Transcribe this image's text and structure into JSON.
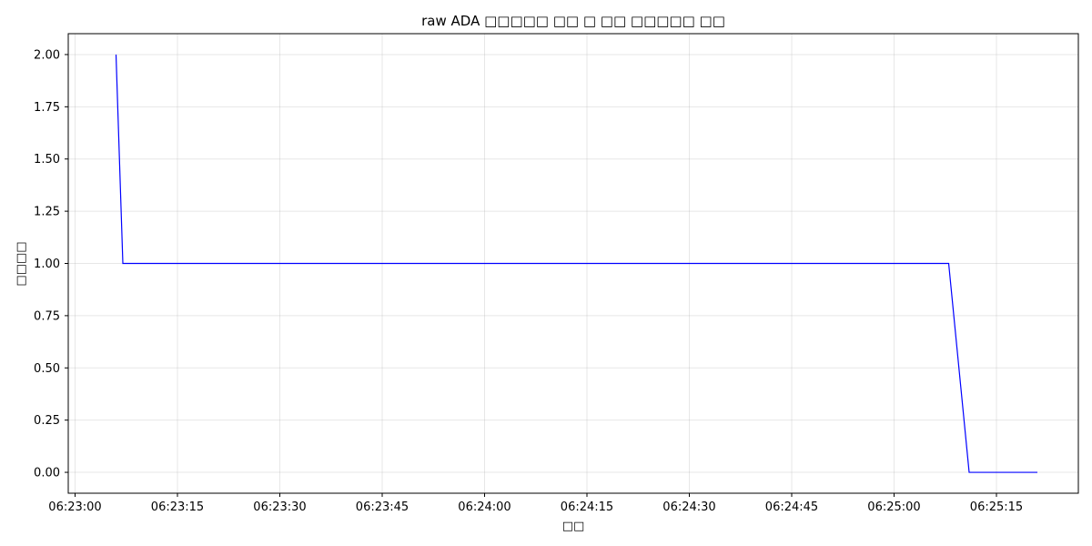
{
  "chart_data": {
    "type": "line",
    "title": "raw ADA □□□□□ □□ □ □□ □□□□□ □□",
    "xlabel": "□□",
    "ylabel": "□□□□",
    "x_type": "time",
    "x_range": [
      "06:22:59",
      "06:25:27"
    ],
    "y_range": [
      -0.1,
      2.1
    ],
    "grid": true,
    "x_ticks": [
      "06:23:00",
      "06:23:15",
      "06:23:30",
      "06:23:45",
      "06:24:00",
      "06:24:15",
      "06:24:30",
      "06:24:45",
      "06:25:00",
      "06:25:15"
    ],
    "y_ticks": [
      0.0,
      0.25,
      0.5,
      0.75,
      1.0,
      1.25,
      1.5,
      1.75,
      2.0
    ],
    "y_tick_labels": [
      "0.00",
      "0.25",
      "0.50",
      "0.75",
      "1.00",
      "1.25",
      "1.50",
      "1.75",
      "2.00"
    ],
    "series": [
      {
        "color": "#0000ff",
        "x": [
          "06:23:06",
          "06:23:07",
          "06:25:08",
          "06:25:11",
          "06:25:21"
        ],
        "values": [
          2.0,
          1.0,
          1.0,
          0.0,
          0.0
        ]
      }
    ]
  }
}
